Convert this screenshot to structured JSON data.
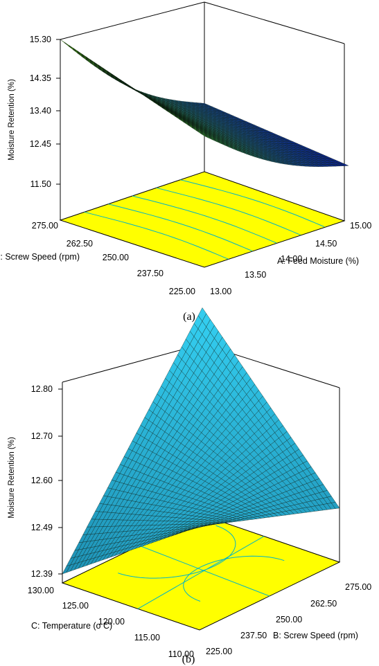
{
  "chart_data": [
    {
      "type": "surface3d",
      "caption": "(a)",
      "zlabel": "Moisture Retention (%)",
      "xlabel": "A: Feed Moisture (%)",
      "ylabel": "B: Screw Speed (rpm)",
      "z_ticks": [
        "15.30",
        "14.35",
        "13.40",
        "12.45",
        "11.50"
      ],
      "x_ticks": [
        "13.00",
        "13.50",
        "14.00",
        "14.50",
        "15.00"
      ],
      "y_ticks": [
        "275.00",
        "262.50",
        "250.00",
        "237.50",
        "225.00"
      ],
      "zlim": [
        11.5,
        15.3
      ],
      "xlim": [
        13.0,
        15.0
      ],
      "ylim": [
        225.0,
        275.0
      ],
      "corners": {
        "A13_B275": 15.3,
        "A15_B275": 12.35,
        "A13_B225": 14.0,
        "A15_B225": 11.95
      },
      "floor_color": "#ffff00",
      "contour_color": "#00b4c8",
      "surface_colors": [
        "#0000a0",
        "#2e8b57",
        "#7cfc00"
      ]
    },
    {
      "type": "surface3d",
      "caption": "(b)",
      "zlabel": "Moisture Retention (%)",
      "xlabel": "B: Screw Speed (rpm)",
      "ylabel": "C: Temperature (o C)",
      "z_ticks": [
        "12.80",
        "12.70",
        "12.60",
        "12.49",
        "12.39"
      ],
      "x_ticks": [
        "225.00",
        "237.50",
        "250.00",
        "262.50",
        "275.00"
      ],
      "y_ticks": [
        "130.00",
        "125.00",
        "120.00",
        "115.00",
        "110.00"
      ],
      "zlim": [
        12.39,
        12.8
      ],
      "xlim": [
        225.0,
        275.0
      ],
      "ylim": [
        110.0,
        130.0
      ],
      "corners": {
        "B225_C130": 12.39,
        "B275_C130": 12.83,
        "B225_C110": 12.6,
        "B275_C110": 12.49
      },
      "floor_color": "#ffff00",
      "contour_color": "#00b4c8",
      "surface_colors": [
        "#1e90b4",
        "#33ccee"
      ]
    }
  ]
}
